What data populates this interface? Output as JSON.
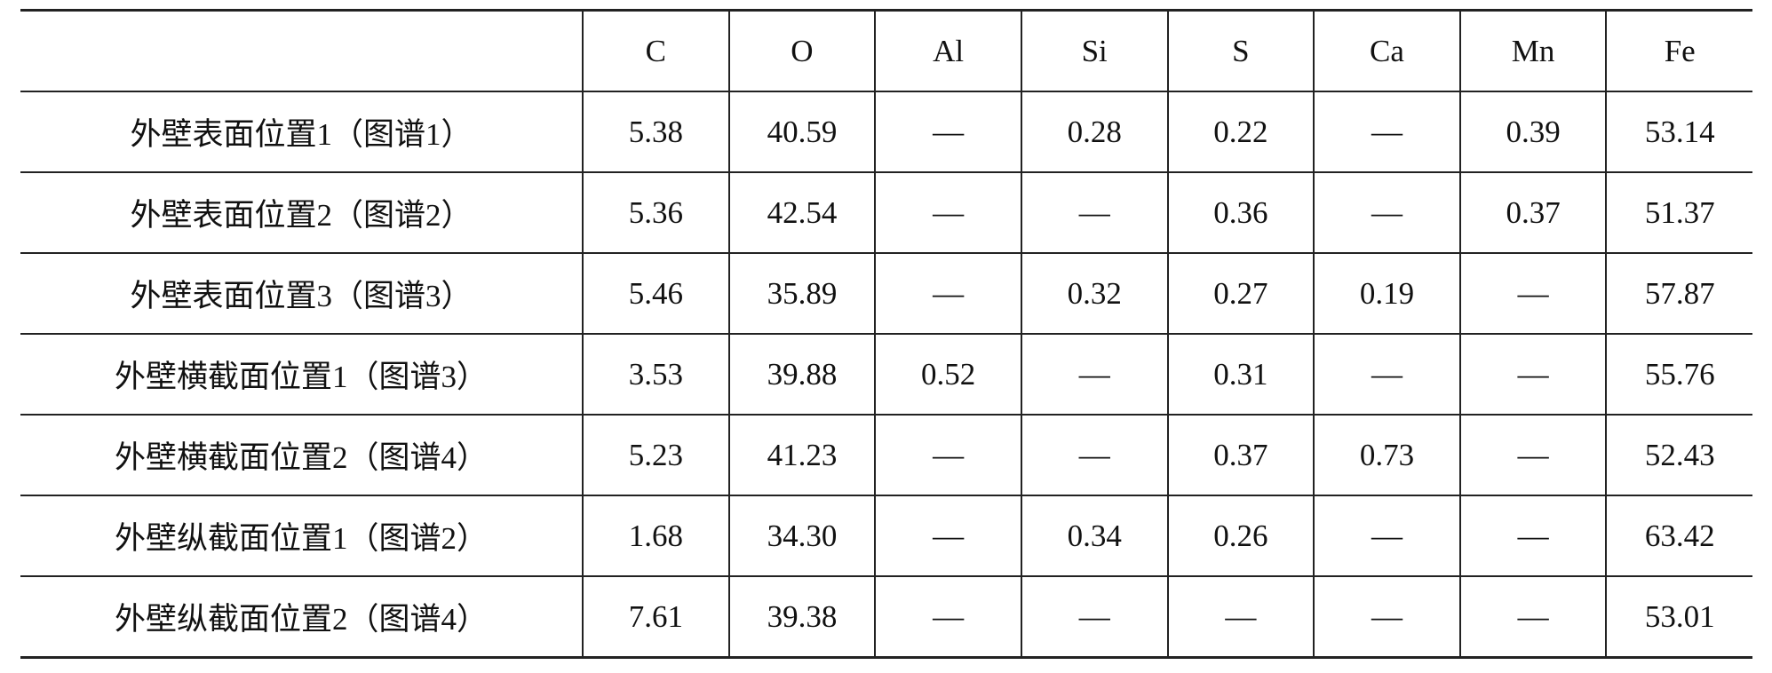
{
  "table": {
    "header": [
      "",
      "C",
      "O",
      "Al",
      "Si",
      "S",
      "Ca",
      "Mn",
      "Fe"
    ],
    "rows": [
      [
        "外壁表面位置1（图谱1）",
        "5.38",
        "40.59",
        "—",
        "0.28",
        "0.22",
        "—",
        "0.39",
        "53.14"
      ],
      [
        "外壁表面位置2（图谱2）",
        "5.36",
        "42.54",
        "—",
        "—",
        "0.36",
        "—",
        "0.37",
        "51.37"
      ],
      [
        "外壁表面位置3（图谱3）",
        "5.46",
        "35.89",
        "—",
        "0.32",
        "0.27",
        "0.19",
        "—",
        "57.87"
      ],
      [
        "外壁横截面位置1（图谱3）",
        "3.53",
        "39.88",
        "0.52",
        "—",
        "0.31",
        "—",
        "—",
        "55.76"
      ],
      [
        "外壁横截面位置2（图谱4）",
        "5.23",
        "41.23",
        "—",
        "—",
        "0.37",
        "0.73",
        "—",
        "52.43"
      ],
      [
        "外壁纵截面位置1（图谱2）",
        "1.68",
        "34.30",
        "—",
        "0.34",
        "0.26",
        "—",
        "—",
        "63.42"
      ],
      [
        "外壁纵截面位置2（图谱4）",
        "7.61",
        "39.38",
        "—",
        "—",
        "—",
        "—",
        "—",
        "53.01"
      ]
    ]
  }
}
